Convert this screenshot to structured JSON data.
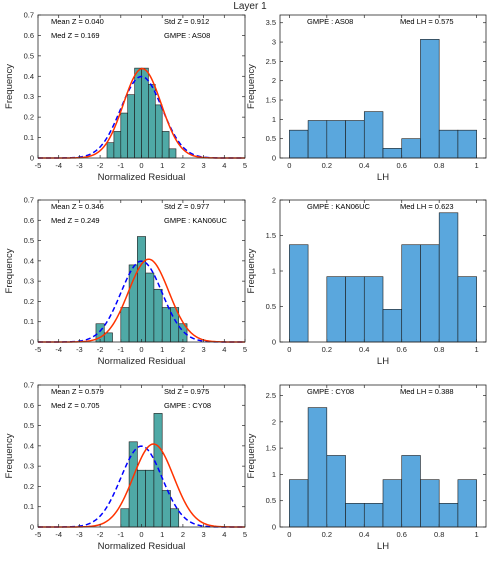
{
  "figure": {
    "title": "Layer 1"
  },
  "chart_data": [
    {
      "type": "histogram",
      "panel": "residual",
      "xlabel": "Normalized Residual",
      "ylabel": "Frequency",
      "xlim": [
        -5,
        5
      ],
      "ylim": [
        0,
        0.7
      ],
      "xticks": [
        -5,
        -4,
        -3,
        -2,
        -1,
        0,
        1,
        2,
        3,
        4,
        5
      ],
      "yticks": [
        0,
        0.1,
        0.2,
        0.3,
        0.4,
        0.5,
        0.6,
        0.7
      ],
      "bin_width": 0.3333,
      "bins": [
        {
          "x0": -1.667,
          "value": 0.075
        },
        {
          "x0": -1.333,
          "value": 0.13
        },
        {
          "x0": -1.0,
          "value": 0.22
        },
        {
          "x0": -0.667,
          "value": 0.31
        },
        {
          "x0": -0.333,
          "value": 0.44
        },
        {
          "x0": 0.0,
          "value": 0.44
        },
        {
          "x0": 0.333,
          "value": 0.36
        },
        {
          "x0": 0.667,
          "value": 0.26
        },
        {
          "x0": 1.0,
          "value": 0.13
        },
        {
          "x0": 1.333,
          "value": 0.045
        }
      ],
      "curves": [
        {
          "style": "dashed",
          "color": "#0000ff",
          "mean": 0,
          "sd": 1
        },
        {
          "style": "solid",
          "color": "#ff3300",
          "mean": 0.04,
          "sd": 0.912
        }
      ],
      "annotations": {
        "line1_left": "Mean Z = 0.040",
        "line2_left": "Med Z = 0.169",
        "line1_right": "Std Z  = 0.912",
        "line2_right": "GMPE : AS08"
      }
    },
    {
      "type": "histogram",
      "panel": "lh",
      "xlabel": "LH",
      "ylabel": "Frequency",
      "xlim": [
        -0.05,
        1.05
      ],
      "ylim": [
        0,
        3.7
      ],
      "xticks": [
        0,
        0.2,
        0.4,
        0.6,
        0.8,
        1
      ],
      "yticks": [
        0,
        0.5,
        1,
        1.5,
        2,
        2.5,
        3,
        3.5
      ],
      "bin_width": 0.1,
      "bins": [
        {
          "x0": 0.0,
          "value": 0.72
        },
        {
          "x0": 0.1,
          "value": 0.97
        },
        {
          "x0": 0.2,
          "value": 0.97
        },
        {
          "x0": 0.3,
          "value": 0.97
        },
        {
          "x0": 0.4,
          "value": 1.2
        },
        {
          "x0": 0.5,
          "value": 0.25
        },
        {
          "x0": 0.6,
          "value": 0.5
        },
        {
          "x0": 0.7,
          "value": 3.07
        },
        {
          "x0": 0.8,
          "value": 0.72
        },
        {
          "x0": 0.9,
          "value": 0.72
        }
      ],
      "annotations": {
        "line1_left": "GMPE : AS08",
        "line1_right": "Med LH = 0.575"
      }
    },
    {
      "type": "histogram",
      "panel": "residual",
      "xlabel": "Normalized Residual",
      "ylabel": "Frequency",
      "xlim": [
        -5,
        5
      ],
      "ylim": [
        0,
        0.7
      ],
      "xticks": [
        -5,
        -4,
        -3,
        -2,
        -1,
        0,
        1,
        2,
        3,
        4,
        5
      ],
      "yticks": [
        0,
        0.1,
        0.2,
        0.3,
        0.4,
        0.5,
        0.6,
        0.7
      ],
      "bin_width": 0.4,
      "bins": [
        {
          "x0": -2.2,
          "value": 0.09
        },
        {
          "x0": -1.8,
          "value": 0.045
        },
        {
          "x0": -1.0,
          "value": 0.17
        },
        {
          "x0": -0.6,
          "value": 0.38
        },
        {
          "x0": -0.2,
          "value": 0.52
        },
        {
          "x0": 0.2,
          "value": 0.34
        },
        {
          "x0": 0.6,
          "value": 0.26
        },
        {
          "x0": 1.0,
          "value": 0.17
        },
        {
          "x0": 1.4,
          "value": 0.17
        },
        {
          "x0": 1.8,
          "value": 0.09
        }
      ],
      "curves": [
        {
          "style": "dashed",
          "color": "#0000ff",
          "mean": 0,
          "sd": 1
        },
        {
          "style": "solid",
          "color": "#ff3300",
          "mean": 0.346,
          "sd": 0.977
        }
      ],
      "annotations": {
        "line1_left": "Mean Z = 0.346",
        "line2_left": "Med Z = 0.249",
        "line1_right": "Std Z  = 0.977",
        "line2_right": "GMPE : KAN06UC"
      }
    },
    {
      "type": "histogram",
      "panel": "lh",
      "xlabel": "LH",
      "ylabel": "Frequency",
      "xlim": [
        -0.05,
        1.05
      ],
      "ylim": [
        0,
        2.0
      ],
      "xticks": [
        0,
        0.2,
        0.4,
        0.6,
        0.8,
        1
      ],
      "yticks": [
        0,
        0.5,
        1,
        1.5,
        2
      ],
      "bin_width": 0.1,
      "bins": [
        {
          "x0": 0.0,
          "value": 1.37
        },
        {
          "x0": 0.1,
          "value": 0.0
        },
        {
          "x0": 0.2,
          "value": 0.92
        },
        {
          "x0": 0.3,
          "value": 0.92
        },
        {
          "x0": 0.4,
          "value": 0.92
        },
        {
          "x0": 0.5,
          "value": 0.46
        },
        {
          "x0": 0.6,
          "value": 1.37
        },
        {
          "x0": 0.7,
          "value": 1.37
        },
        {
          "x0": 0.8,
          "value": 1.82
        },
        {
          "x0": 0.9,
          "value": 0.92
        }
      ],
      "annotations": {
        "line1_left": "GMPE : KAN06UC",
        "line1_right": "Med LH = 0.623"
      }
    },
    {
      "type": "histogram",
      "panel": "residual",
      "xlabel": "Normalized Residual",
      "ylabel": "Frequency",
      "xlim": [
        -5,
        5
      ],
      "ylim": [
        0,
        0.7
      ],
      "xticks": [
        -5,
        -4,
        -3,
        -2,
        -1,
        0,
        1,
        2,
        3,
        4,
        5
      ],
      "yticks": [
        0,
        0.1,
        0.2,
        0.3,
        0.4,
        0.5,
        0.6,
        0.7
      ],
      "bin_width": 0.4,
      "bins": [
        {
          "x0": -1.0,
          "value": 0.09
        },
        {
          "x0": -0.6,
          "value": 0.42
        },
        {
          "x0": -0.2,
          "value": 0.28
        },
        {
          "x0": 0.2,
          "value": 0.28
        },
        {
          "x0": 0.6,
          "value": 0.56
        },
        {
          "x0": 1.0,
          "value": 0.18
        },
        {
          "x0": 1.4,
          "value": 0.09
        }
      ],
      "curves": [
        {
          "style": "dashed",
          "color": "#0000ff",
          "mean": 0,
          "sd": 1
        },
        {
          "style": "solid",
          "color": "#ff3300",
          "mean": 0.579,
          "sd": 0.975
        }
      ],
      "annotations": {
        "line1_left": "Mean Z = 0.579",
        "line2_left": "Med Z = 0.705",
        "line1_right": "Std Z  = 0.975",
        "line2_right": "GMPE : CY08"
      }
    },
    {
      "type": "histogram",
      "panel": "lh",
      "xlabel": "LH",
      "ylabel": "Frequency",
      "xlim": [
        -0.05,
        1.05
      ],
      "ylim": [
        0,
        2.7
      ],
      "xticks": [
        0,
        0.2,
        0.4,
        0.6,
        0.8,
        1
      ],
      "yticks": [
        0,
        0.5,
        1,
        1.5,
        2,
        2.5
      ],
      "bin_width": 0.1,
      "bins": [
        {
          "x0": 0.0,
          "value": 0.9
        },
        {
          "x0": 0.1,
          "value": 2.27
        },
        {
          "x0": 0.2,
          "value": 1.36
        },
        {
          "x0": 0.3,
          "value": 0.45
        },
        {
          "x0": 0.4,
          "value": 0.45
        },
        {
          "x0": 0.5,
          "value": 0.9
        },
        {
          "x0": 0.6,
          "value": 1.36
        },
        {
          "x0": 0.7,
          "value": 0.9
        },
        {
          "x0": 0.8,
          "value": 0.45
        },
        {
          "x0": 0.9,
          "value": 0.9
        }
      ],
      "annotations": {
        "line1_left": "GMPE : CY08",
        "line1_right": "Med LH = 0.388"
      }
    }
  ],
  "colors": {
    "residual_bar": "#4fa9a6",
    "lh_bar": "#5aa7dd",
    "bar_edge": "#1a1a1a",
    "axis": "#262626"
  }
}
